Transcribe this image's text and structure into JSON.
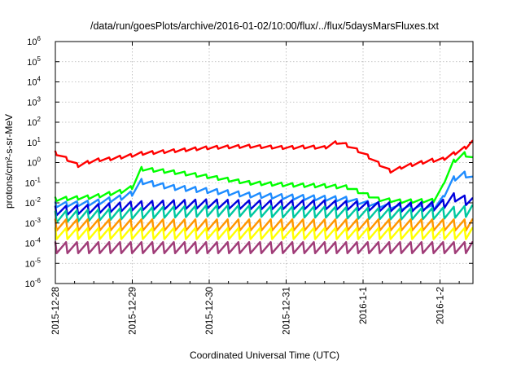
{
  "chart_data": {
    "type": "line",
    "title": "/data/run/goesPlots/archive/2016-01-02/10:00/flux/../flux/5daysMarsFluxes.txt",
    "xlabel": "Coordinated Universal Time (UTC)",
    "ylabel": "protons/cm²-s-sr-MeV",
    "yscale": "log",
    "ylim": [
      1e-06,
      1000000.0
    ],
    "xlim": [
      "2015-12-28 00:00",
      "2016-01-02 10:00"
    ],
    "grid": true,
    "legend": "none",
    "y_ticks": [
      {
        "base": "10",
        "exp": "-6",
        "value": 1e-06
      },
      {
        "base": "10",
        "exp": "-5",
        "value": 1e-05
      },
      {
        "base": "10",
        "exp": "-4",
        "value": 0.0001
      },
      {
        "base": "10",
        "exp": "-3",
        "value": 0.001
      },
      {
        "base": "10",
        "exp": "-2",
        "value": 0.01
      },
      {
        "base": "10",
        "exp": "-1",
        "value": 0.1
      },
      {
        "base": "10",
        "exp": "0",
        "value": 1
      },
      {
        "base": "10",
        "exp": "1",
        "value": 10
      },
      {
        "base": "10",
        "exp": "2",
        "value": 100
      },
      {
        "base": "10",
        "exp": "3",
        "value": 1000
      },
      {
        "base": "10",
        "exp": "4",
        "value": 10000
      },
      {
        "base": "10",
        "exp": "5",
        "value": 100000
      },
      {
        "base": "10",
        "exp": "6",
        "value": 1000000
      }
    ],
    "x_ticks": [
      "2015-12-28",
      "2015-12-29",
      "2015-12-30",
      "2015-12-31",
      "2016-1-1",
      "2016-1-2"
    ],
    "series": [
      {
        "color": "#ff0000",
        "values": [
          [
            0.0,
            3.0
          ],
          [
            0.2,
            1.2
          ],
          [
            0.3,
            0.7
          ],
          [
            0.5,
            1.3
          ],
          [
            0.7,
            1.5
          ],
          [
            0.9,
            2.0
          ],
          [
            1.0,
            2.3
          ],
          [
            1.1,
            2.8
          ],
          [
            1.3,
            3.2
          ],
          [
            1.6,
            4.0
          ],
          [
            2.0,
            5.5
          ],
          [
            2.5,
            6.5
          ],
          [
            3.0,
            5.5
          ],
          [
            3.3,
            6.0
          ],
          [
            3.5,
            5.5
          ],
          [
            3.7,
            12.0
          ],
          [
            3.8,
            7.0
          ],
          [
            4.0,
            3.0
          ],
          [
            4.2,
            0.9
          ],
          [
            4.3,
            0.5
          ],
          [
            4.4,
            0.3
          ],
          [
            4.5,
            0.6
          ],
          [
            4.7,
            0.9
          ],
          [
            4.9,
            1.3
          ],
          [
            5.0,
            1.2
          ],
          [
            5.1,
            2.0
          ],
          [
            5.2,
            3.0
          ],
          [
            5.3,
            4.5
          ],
          [
            5.42,
            10.0
          ]
        ]
      },
      {
        "color": "#00ff00",
        "values": [
          [
            0.0,
            0.015
          ],
          [
            0.5,
            0.02
          ],
          [
            0.9,
            0.04
          ],
          [
            1.0,
            0.06
          ],
          [
            1.1,
            0.5
          ],
          [
            1.5,
            0.35
          ],
          [
            2.0,
            0.2
          ],
          [
            2.5,
            0.1
          ],
          [
            3.0,
            0.08
          ],
          [
            3.5,
            0.07
          ],
          [
            3.8,
            0.06
          ],
          [
            4.0,
            0.03
          ],
          [
            4.2,
            0.015
          ],
          [
            4.5,
            0.012
          ],
          [
            4.9,
            0.013
          ],
          [
            5.0,
            0.015
          ],
          [
            5.1,
            0.6
          ],
          [
            5.3,
            3.0
          ],
          [
            5.42,
            1.5
          ]
        ]
      },
      {
        "color": "#1e8cff",
        "values": [
          [
            0.0,
            0.008
          ],
          [
            0.5,
            0.01
          ],
          [
            0.9,
            0.02
          ],
          [
            1.0,
            0.03
          ],
          [
            1.1,
            0.12
          ],
          [
            1.5,
            0.06
          ],
          [
            2.0,
            0.04
          ],
          [
            2.5,
            0.025
          ],
          [
            3.0,
            0.02
          ],
          [
            3.5,
            0.017
          ],
          [
            3.8,
            0.015
          ],
          [
            4.0,
            0.01
          ],
          [
            4.2,
            0.008
          ],
          [
            4.5,
            0.006
          ],
          [
            4.9,
            0.006
          ],
          [
            5.0,
            0.005
          ],
          [
            5.1,
            0.1
          ],
          [
            5.3,
            0.3
          ],
          [
            5.42,
            0.15
          ]
        ]
      },
      {
        "color": "#0000dd",
        "values": [
          [
            0.0,
            0.004
          ],
          [
            0.5,
            0.005
          ],
          [
            1.0,
            0.007
          ],
          [
            1.5,
            0.008
          ],
          [
            2.0,
            0.009
          ],
          [
            2.5,
            0.008
          ],
          [
            3.0,
            0.008
          ],
          [
            3.5,
            0.008
          ],
          [
            4.0,
            0.007
          ],
          [
            4.5,
            0.006
          ],
          [
            5.0,
            0.007
          ],
          [
            5.2,
            0.02
          ],
          [
            5.42,
            0.01
          ]
        ]
      },
      {
        "color": "#00c8a0",
        "values": [
          [
            0.0,
            0.002
          ],
          [
            0.5,
            0.0025
          ],
          [
            1.0,
            0.003
          ],
          [
            1.5,
            0.0035
          ],
          [
            2.0,
            0.004
          ],
          [
            2.5,
            0.004
          ],
          [
            3.0,
            0.0035
          ],
          [
            3.5,
            0.0035
          ],
          [
            4.0,
            0.003
          ],
          [
            4.5,
            0.0028
          ],
          [
            5.0,
            0.003
          ],
          [
            5.42,
            0.004
          ]
        ]
      },
      {
        "color": "#ff9600",
        "values": [
          [
            0.0,
            0.0008
          ],
          [
            5.42,
            0.0008
          ]
        ]
      },
      {
        "color": "#ffff00",
        "values": [
          [
            0.0,
            0.0003
          ],
          [
            5.42,
            0.0003
          ]
        ]
      },
      {
        "color": "#a03c78",
        "values": [
          [
            0.0,
            6e-05
          ],
          [
            5.42,
            6e-05
          ]
        ]
      }
    ]
  }
}
